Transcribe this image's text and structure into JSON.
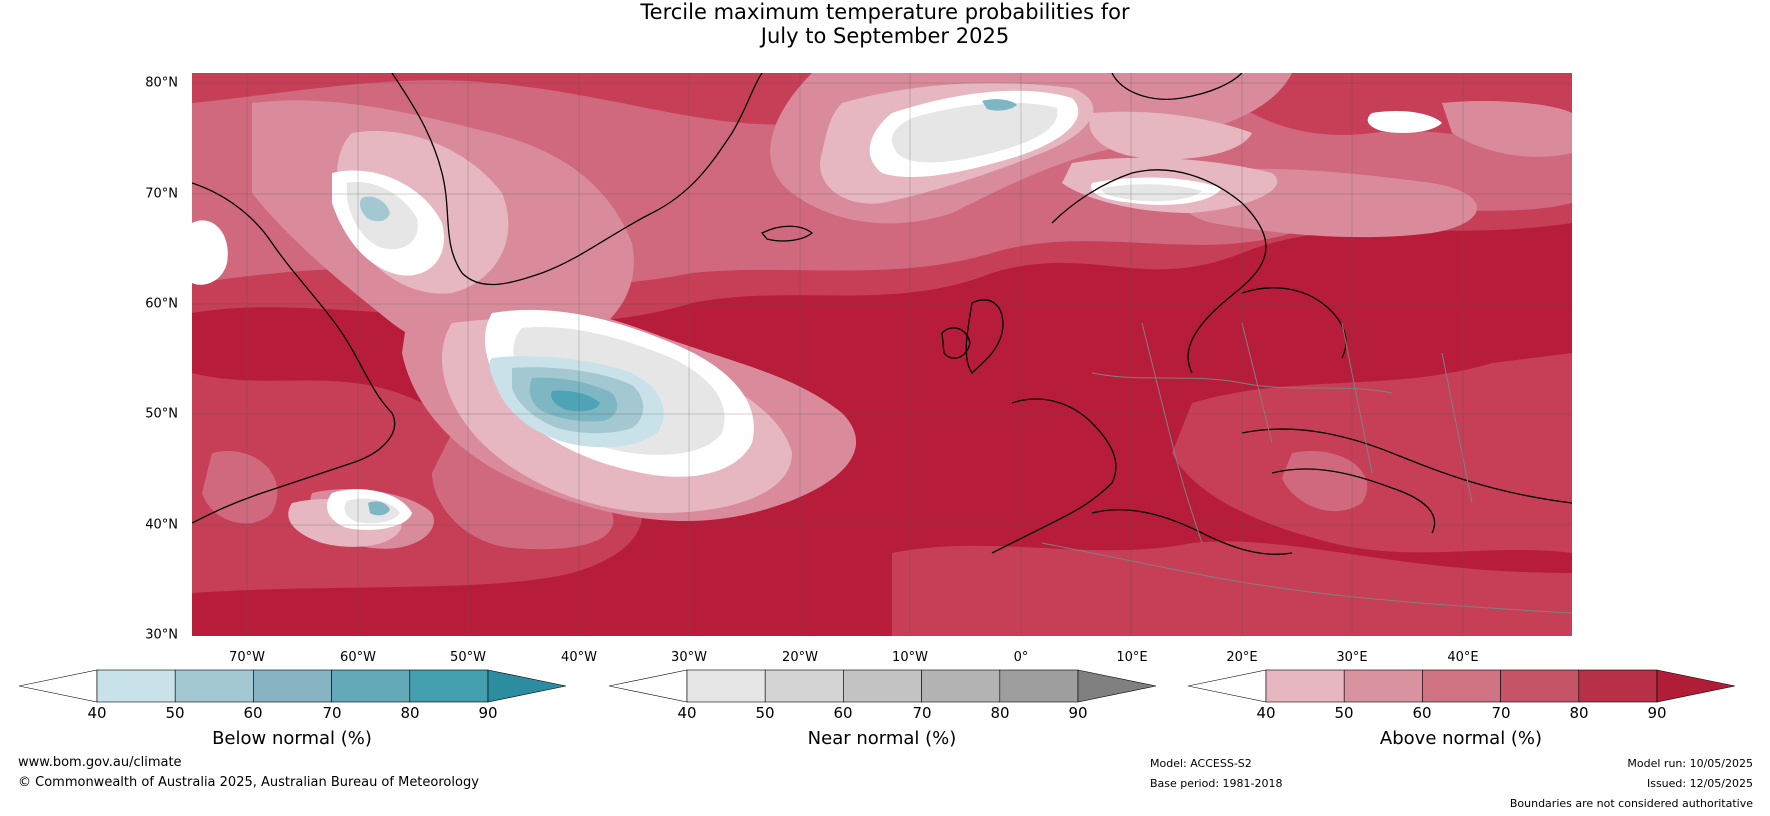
{
  "title": {
    "line1": "Tercile maximum temperature probabilities for",
    "line2": "July to September 2025"
  },
  "map": {
    "lat_labels": [
      "80°N",
      "70°N",
      "60°N",
      "50°N",
      "40°N",
      "30°N"
    ],
    "lon_labels": [
      "70°W",
      "60°W",
      "50°W",
      "40°W",
      "30°W",
      "20°W",
      "10°W",
      "0°",
      "10°E",
      "20°E",
      "30°E",
      "40°E"
    ],
    "colors": {
      "above_90": "#b71c3a",
      "above_80": "#c73e57",
      "above_70": "#d0697d",
      "above_60": "#d98b9c",
      "above_50": "#e6b7c1",
      "neutral": "#ffffff",
      "near_50": "#e6e6e6",
      "near_60": "#d3d3d3",
      "below_50": "#c9e2e9",
      "below_60": "#a3c8d1",
      "below_70": "#7fb6c4",
      "below_80": "#4fa3b6",
      "coast": "#000000",
      "border": "#808080"
    }
  },
  "legends": [
    {
      "title": "Below normal (%)",
      "ticks": [
        "40",
        "50",
        "60",
        "70",
        "80",
        "90"
      ],
      "colors": [
        "#ffffff",
        "#c9e2e9",
        "#a3c8d1",
        "#87b3c2",
        "#63a9b7",
        "#449faf",
        "#2b8d9f"
      ]
    },
    {
      "title": "Near normal (%)",
      "ticks": [
        "40",
        "50",
        "60",
        "70",
        "80",
        "90"
      ],
      "colors": [
        "#ffffff",
        "#e6e6e6",
        "#d4d4d4",
        "#c4c4c4",
        "#b3b3b3",
        "#9e9e9e",
        "#808080"
      ]
    },
    {
      "title": "Above normal (%)",
      "ticks": [
        "40",
        "50",
        "60",
        "70",
        "80",
        "90"
      ],
      "colors": [
        "#ffffff",
        "#e6b7c1",
        "#d9929f",
        "#cf7281",
        "#c45466",
        "#b83047",
        "#b11c36"
      ]
    }
  ],
  "footer": {
    "website": "www.bom.gov.au/climate",
    "copyright": "© Commonwealth of Australia 2025, Australian Bureau of Meteorology",
    "model": "Model: ACCESS-S2",
    "base_period": "Base period: 1981-2018",
    "model_run": "Model run: 10/05/2025",
    "issued": "Issued: 12/05/2025",
    "disclaimer": "Boundaries are not considered authoritative"
  }
}
